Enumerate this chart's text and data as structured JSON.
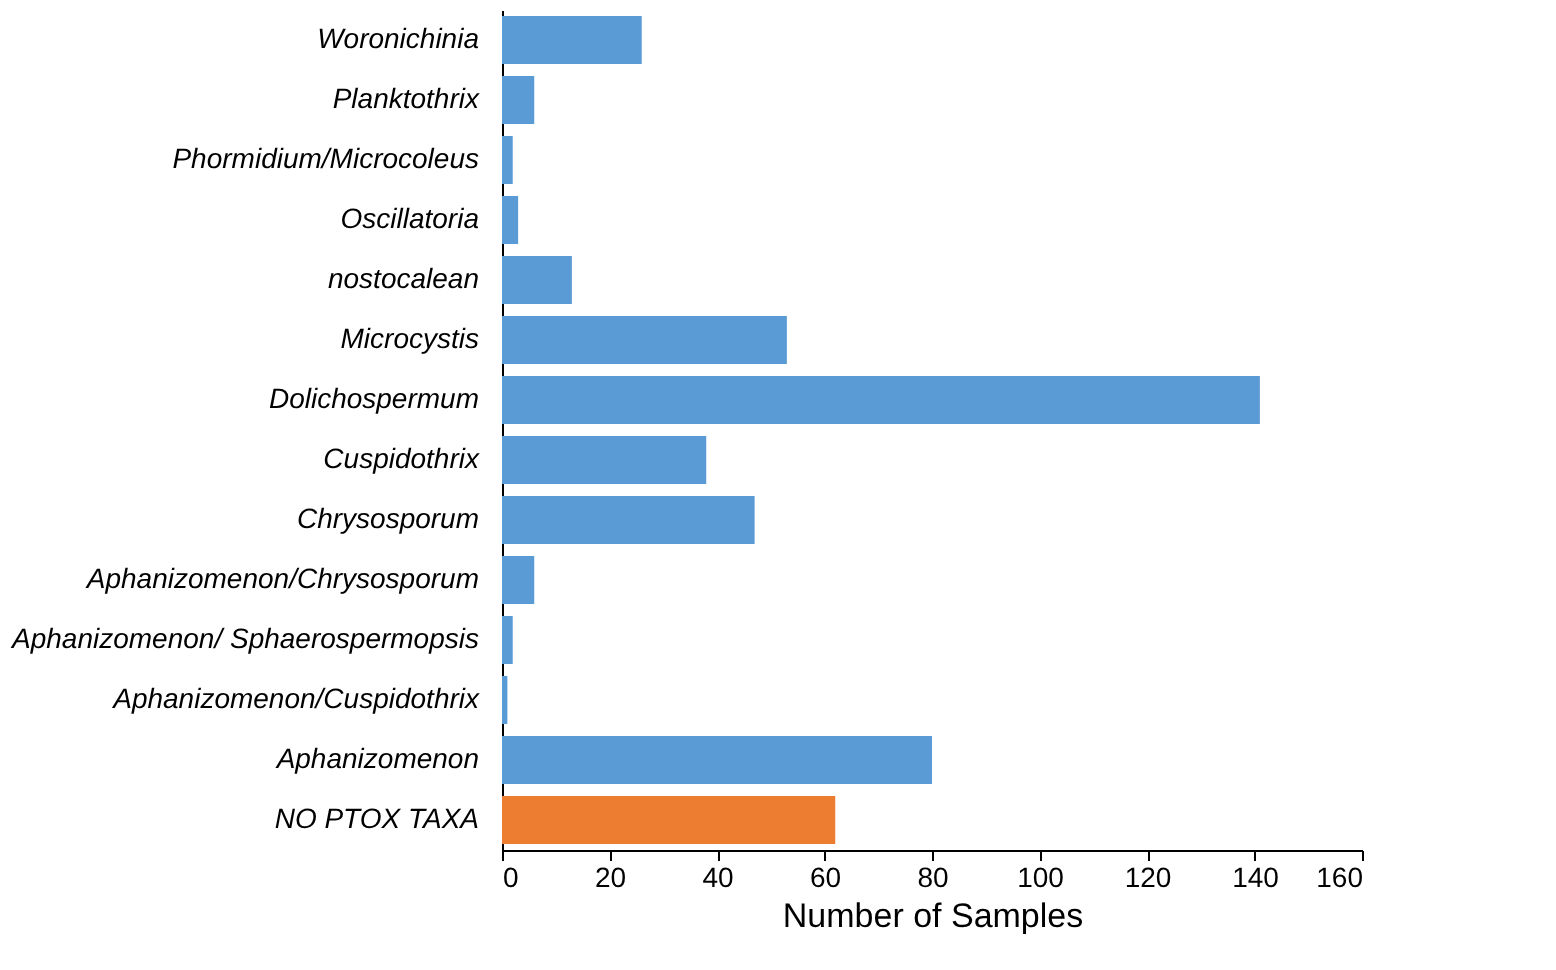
{
  "chart_data": {
    "type": "bar",
    "orientation": "horizontal",
    "xlabel": "Number of Samples",
    "categories": [
      "Woronichinia",
      "Planktothrix",
      "Phormidium/Microcoleus",
      "Oscillatoria",
      "nostocalean",
      "Microcystis",
      "Dolichospermum",
      "Cuspidothrix",
      "Chrysosporum",
      "Aphanizomenon/Chrysosporum",
      "Aphanizomenon/ Sphaerospermopsis",
      "Aphanizomenon/Cuspidothrix",
      "Aphanizomenon",
      "NO PTOX TAXA"
    ],
    "values": [
      26,
      6,
      2,
      3,
      13,
      53,
      141,
      38,
      47,
      6,
      2,
      1,
      80,
      62
    ],
    "colors": [
      "#5b9bd5",
      "#5b9bd5",
      "#5b9bd5",
      "#5b9bd5",
      "#5b9bd5",
      "#5b9bd5",
      "#5b9bd5",
      "#5b9bd5",
      "#5b9bd5",
      "#5b9bd5",
      "#5b9bd5",
      "#5b9bd5",
      "#5b9bd5",
      "#ed7d31"
    ],
    "xlim": [
      0,
      160
    ],
    "xticks": [
      0,
      20,
      40,
      60,
      80,
      100,
      120,
      140,
      160
    ],
    "grid": false
  }
}
